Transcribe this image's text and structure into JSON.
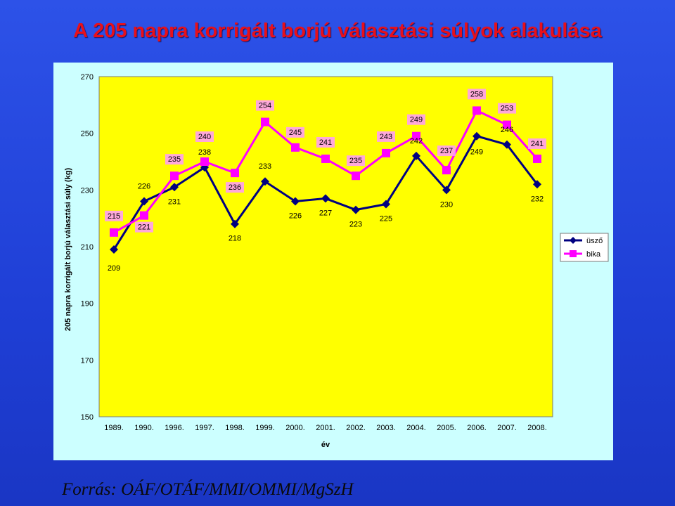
{
  "slide": {
    "title": "A 205 napra korrigált borjú választási súlyok alakulása",
    "source": "Forrás: OÁF/OTÁF/MMI/OMMI/MgSzH"
  },
  "colors": {
    "background": "#1f3fd6",
    "title": "#e8101a",
    "chart_area": "#ccffff",
    "plot_area": "#ffff00",
    "series_usző": "#000080",
    "series_bika": "#ff00ff"
  },
  "chart_data": {
    "type": "line",
    "title": "",
    "xlabel": "év",
    "ylabel": "205 napra korrigált borjú választási súly (kg)",
    "ylim": [
      150,
      270
    ],
    "yticks": [
      150,
      170,
      190,
      210,
      230,
      250,
      270
    ],
    "grid": false,
    "legend_position": "right",
    "categories": [
      "1989.",
      "1990.",
      "1996.",
      "1997.",
      "1998.",
      "1999.",
      "2000.",
      "2001.",
      "2002.",
      "2003.",
      "2004.",
      "2005.",
      "2006.",
      "2007.",
      "2008."
    ],
    "series": [
      {
        "name": "üsző",
        "marker": "diamond",
        "color": "#000080",
        "values": [
          209,
          226,
          231,
          238,
          218,
          233,
          226,
          227,
          223,
          225,
          242,
          230,
          249,
          246,
          232
        ]
      },
      {
        "name": "bika",
        "marker": "square",
        "color": "#ff00ff",
        "values": [
          215,
          221,
          235,
          240,
          236,
          254,
          245,
          241,
          235,
          243,
          249,
          237,
          258,
          253,
          241
        ]
      }
    ]
  }
}
